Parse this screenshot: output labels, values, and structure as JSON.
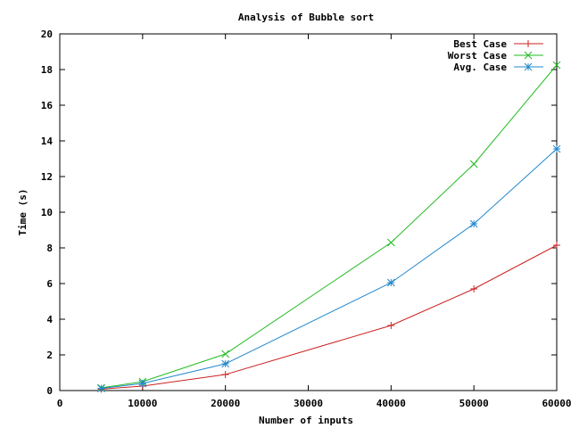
{
  "chart_data": {
    "type": "line",
    "title": "Analysis of Bubble sort",
    "xlabel": "Number of inputs",
    "ylabel": "Time (s)",
    "xlim": [
      0,
      60000
    ],
    "ylim": [
      0,
      20
    ],
    "xticks": [
      0,
      10000,
      20000,
      30000,
      40000,
      50000,
      60000
    ],
    "yticks": [
      0,
      2,
      4,
      6,
      8,
      10,
      12,
      14,
      16,
      18,
      20
    ],
    "grid": false,
    "legend_position": "top-right",
    "x": [
      5000,
      10000,
      20000,
      40000,
      50000,
      60000
    ],
    "series": [
      {
        "name": "Best Case",
        "color": "#cc2222",
        "marker": "plus",
        "values": [
          0.08,
          0.25,
          0.9,
          3.65,
          5.7,
          8.15
        ]
      },
      {
        "name": "Worst Case",
        "color": "#22bb22",
        "marker": "cross",
        "values": [
          0.15,
          0.5,
          2.05,
          8.3,
          12.7,
          18.25
        ]
      },
      {
        "name": "Avg. Case",
        "color": "#2288cc",
        "marker": "star",
        "values": [
          0.12,
          0.4,
          1.5,
          6.05,
          9.35,
          13.55
        ]
      }
    ]
  }
}
